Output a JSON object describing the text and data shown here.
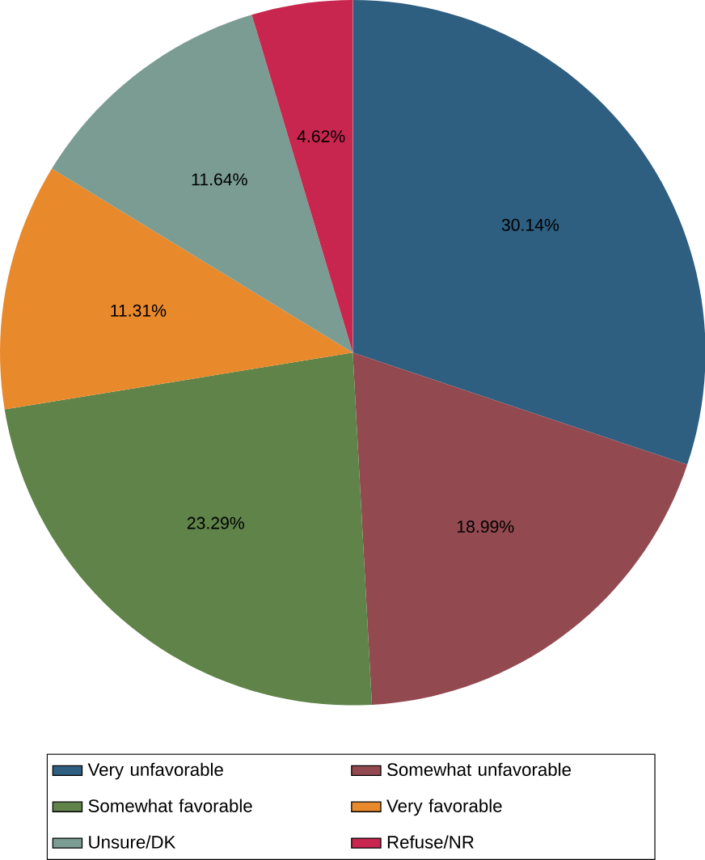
{
  "chart_data": {
    "type": "pie",
    "categories": [
      "Very unfavorable",
      "Somewhat unfavorable",
      "Somewhat favorable",
      "Very favorable",
      "Unsure/DK",
      "Refuse/NR"
    ],
    "values": [
      30.14,
      18.99,
      23.29,
      11.31,
      11.64,
      4.62
    ],
    "colors": [
      "#2e5e80",
      "#924a50",
      "#5f8349",
      "#e8892b",
      "#7a9c93",
      "#c8264e"
    ],
    "value_labels": [
      "30.14%",
      "18.99%",
      "23.29%",
      "11.31%",
      "11.64%",
      "4.62%"
    ],
    "legend": "bottom"
  }
}
